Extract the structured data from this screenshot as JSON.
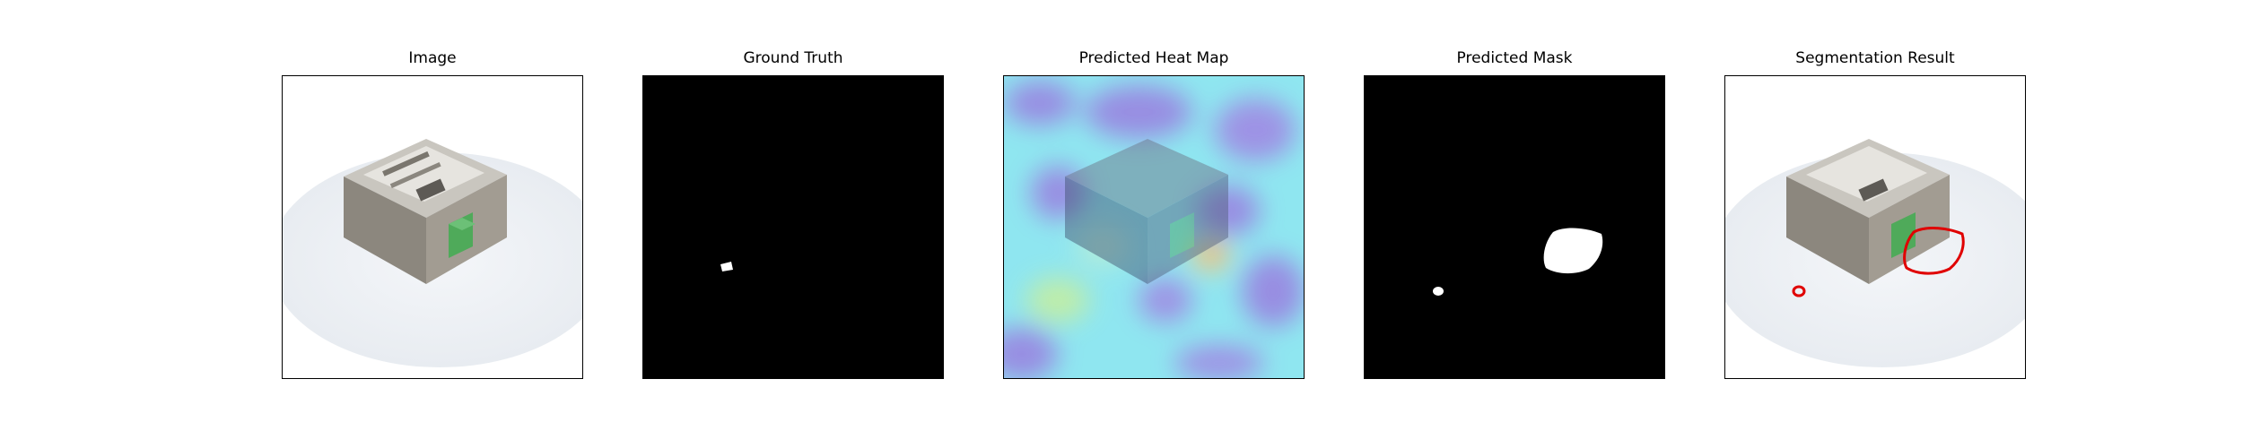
{
  "figure": {
    "panels": [
      {
        "title": "Image"
      },
      {
        "title": "Ground Truth"
      },
      {
        "title": "Predicted Heat Map"
      },
      {
        "title": "Predicted Mask"
      },
      {
        "title": "Segmentation Result"
      }
    ]
  },
  "colors": {
    "background": "#ffffff",
    "mask_background": "#000000",
    "mask_foreground": "#ffffff",
    "segmentation_outline": "#e00000",
    "device_body": "#9a948a",
    "device_terminal": "#4faa5a"
  }
}
